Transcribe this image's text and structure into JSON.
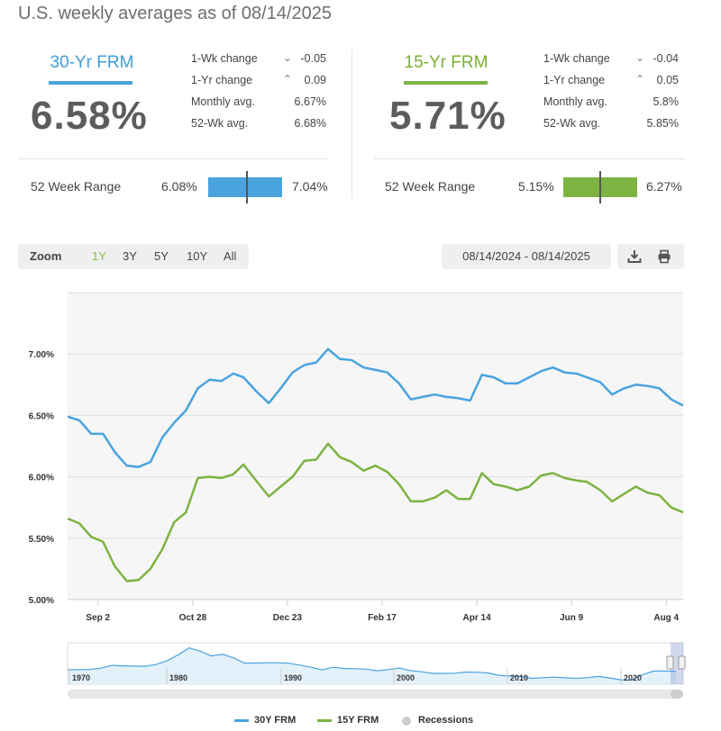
{
  "page": {
    "title": "U.S. weekly averages as of 08/14/2025"
  },
  "rates": [
    {
      "label": "30-Yr FRM",
      "value": "6.58%",
      "color": "#4aa3df",
      "wk_change_label": "1-Wk change",
      "wk_change": "-0.05",
      "wk_direction": "down",
      "yr_change_label": "1-Yr change",
      "yr_change": "0.09",
      "yr_direction": "up",
      "monthly_label": "Monthly avg.",
      "monthly": "6.67%",
      "wk52_label": "52-Wk avg.",
      "wk52": "6.68%",
      "range_label": "52 Week Range",
      "range_min": "6.08%",
      "range_max": "7.04%",
      "range_low": 6.08,
      "range_high": 7.04,
      "range_current": 6.58
    },
    {
      "label": "15-Yr FRM",
      "value": "5.71%",
      "color": "#7cb342",
      "wk_change_label": "1-Wk change",
      "wk_change": "-0.04",
      "wk_direction": "down",
      "yr_change_label": "1-Yr change",
      "yr_change": "0.05",
      "yr_direction": "up",
      "monthly_label": "Monthly avg.",
      "monthly": "5.8%",
      "wk52_label": "52-Wk avg.",
      "wk52": "5.85%",
      "range_label": "52 Week Range",
      "range_min": "5.15%",
      "range_max": "6.27%",
      "range_low": 5.15,
      "range_high": 6.27,
      "range_current": 5.71
    }
  ],
  "icons": {
    "down": "chevron-down-icon",
    "up": "chevron-up-icon",
    "download": "download-icon",
    "print": "print-icon"
  },
  "toolbar": {
    "zoom_label": "Zoom",
    "zoom_options": [
      "1Y",
      "3Y",
      "5Y",
      "10Y",
      "All"
    ],
    "zoom_selected": "1Y",
    "date_range": "08/14/2024 - 08/14/2025"
  },
  "chart_data": {
    "type": "line",
    "x_start": "2024-08-15",
    "x_end": "2025-08-14",
    "ylim": [
      5.0,
      7.5
    ],
    "yticks": [
      5.0,
      5.5,
      6.0,
      6.5,
      7.0
    ],
    "ytick_labels": [
      "5.00%",
      "5.50%",
      "6.00%",
      "6.50%",
      "7.00%"
    ],
    "xticks": [
      "2024-09-02",
      "2024-10-28",
      "2024-12-23",
      "2025-02-17",
      "2025-04-14",
      "2025-06-09",
      "2025-08-04"
    ],
    "xtick_labels": [
      "Sep 2",
      "Oct 28",
      "Dec 23",
      "Feb 17",
      "Apr 14",
      "Jun 9",
      "Aug 4"
    ],
    "grid": true,
    "legend_position": "bottom",
    "dates": [
      "2024-08-15",
      "2024-08-22",
      "2024-08-29",
      "2024-09-05",
      "2024-09-12",
      "2024-09-19",
      "2024-09-26",
      "2024-10-03",
      "2024-10-10",
      "2024-10-17",
      "2024-10-24",
      "2024-10-31",
      "2024-11-07",
      "2024-11-14",
      "2024-11-21",
      "2024-11-27",
      "2024-12-05",
      "2024-12-12",
      "2024-12-19",
      "2024-12-26",
      "2025-01-02",
      "2025-01-09",
      "2025-01-16",
      "2025-01-23",
      "2025-01-30",
      "2025-02-06",
      "2025-02-13",
      "2025-02-20",
      "2025-02-27",
      "2025-03-06",
      "2025-03-13",
      "2025-03-20",
      "2025-03-27",
      "2025-04-03",
      "2025-04-10",
      "2025-04-17",
      "2025-04-24",
      "2025-05-01",
      "2025-05-08",
      "2025-05-15",
      "2025-05-22",
      "2025-05-29",
      "2025-06-05",
      "2025-06-12",
      "2025-06-18",
      "2025-06-26",
      "2025-07-03",
      "2025-07-10",
      "2025-07-17",
      "2025-07-24",
      "2025-07-31",
      "2025-08-07",
      "2025-08-14"
    ],
    "series": [
      {
        "name": "30Y FRM",
        "color": "#4aa3df",
        "values": [
          6.49,
          6.46,
          6.35,
          6.35,
          6.2,
          6.09,
          6.08,
          6.12,
          6.32,
          6.44,
          6.54,
          6.72,
          6.79,
          6.78,
          6.84,
          6.81,
          6.69,
          6.6,
          6.72,
          6.85,
          6.91,
          6.93,
          7.04,
          6.96,
          6.95,
          6.89,
          6.87,
          6.85,
          6.76,
          6.63,
          6.65,
          6.67,
          6.65,
          6.64,
          6.62,
          6.83,
          6.81,
          6.76,
          6.76,
          6.81,
          6.86,
          6.89,
          6.85,
          6.84,
          6.81,
          6.77,
          6.67,
          6.72,
          6.75,
          6.74,
          6.72,
          6.63,
          6.58
        ]
      },
      {
        "name": "15Y FRM",
        "color": "#7cb342",
        "values": [
          5.66,
          5.62,
          5.51,
          5.47,
          5.27,
          5.15,
          5.16,
          5.25,
          5.41,
          5.63,
          5.71,
          5.99,
          6.0,
          5.99,
          6.02,
          6.1,
          5.96,
          5.84,
          5.92,
          6.0,
          6.13,
          6.14,
          6.27,
          6.16,
          6.12,
          6.05,
          6.09,
          6.04,
          5.94,
          5.8,
          5.8,
          5.83,
          5.89,
          5.82,
          5.82,
          6.03,
          5.94,
          5.92,
          5.89,
          5.92,
          6.01,
          6.03,
          5.99,
          5.97,
          5.96,
          5.89,
          5.8,
          5.86,
          5.92,
          5.87,
          5.85,
          5.75,
          5.71
        ]
      }
    ]
  },
  "navigator": {
    "year_labels": [
      "1970",
      "1980",
      "1990",
      "2000",
      "2010",
      "2020"
    ],
    "series": [
      7.3,
      7.4,
      7.5,
      8.0,
      9.2,
      9.0,
      8.9,
      8.8,
      9.6,
      11.2,
      13.7,
      16.6,
      15.2,
      13.2,
      13.9,
      12.4,
      10.2,
      10.2,
      10.3,
      10.3,
      10.1,
      9.3,
      8.4,
      7.3,
      8.4,
      7.9,
      7.8,
      7.6,
      6.9,
      7.4,
      8.1,
      7.0,
      6.5,
      5.8,
      5.8,
      5.9,
      6.4,
      6.3,
      6.0,
      5.0,
      4.7,
      4.5,
      3.7,
      4.0,
      4.2,
      3.9,
      3.7,
      4.0,
      4.5,
      3.9,
      3.1,
      3.0,
      5.3,
      6.8,
      6.8,
      6.6
    ]
  },
  "legend": {
    "items": [
      {
        "label": "30Y FRM",
        "color": "#4aa3df"
      },
      {
        "label": "15Y FRM",
        "color": "#7cb342"
      },
      {
        "label": "Recessions",
        "color": "#cccccc"
      }
    ]
  }
}
